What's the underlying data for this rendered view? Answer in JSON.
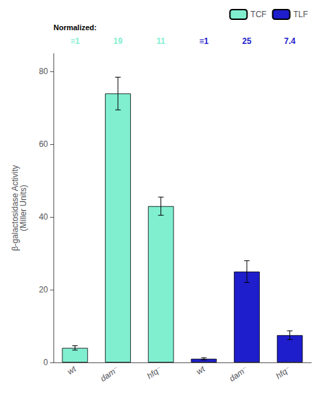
{
  "chart_data": {
    "type": "bar",
    "categories": [
      "wt",
      "dam⁻",
      "hfq⁻",
      "wt",
      "dam⁻",
      "hfq⁻"
    ],
    "series": [
      {
        "name": "TCF",
        "color": "#7FEFD0",
        "values": [
          4.0,
          74.0,
          43.0,
          null,
          null,
          null
        ],
        "errors": [
          0.6,
          4.5,
          2.5,
          null,
          null,
          null
        ]
      },
      {
        "name": "TLF",
        "color": "#1E1ECC",
        "values": [
          null,
          null,
          null,
          1.0,
          25.0,
          7.5
        ],
        "errors": [
          null,
          null,
          null,
          0.3,
          3.0,
          1.2
        ]
      }
    ],
    "ylabel": "β-galactosidase Activity\n(Miller Units)",
    "ylim": [
      0,
      85
    ],
    "yticks": [
      0,
      20,
      40,
      60,
      80
    ],
    "grid": false,
    "legend": "upper right",
    "annotations": [
      {
        "text": "Normalized:",
        "color": "#000000"
      },
      {
        "text": "≡1",
        "color": "#7FEFD0"
      },
      {
        "text": "19",
        "color": "#7FEFD0"
      },
      {
        "text": "11",
        "color": "#7FEFD0"
      },
      {
        "text": "≡1",
        "color": "#1E1ECC"
      },
      {
        "text": "25",
        "color": "#1E1ECC"
      },
      {
        "text": "7.4",
        "color": "#1E1ECC"
      }
    ]
  }
}
